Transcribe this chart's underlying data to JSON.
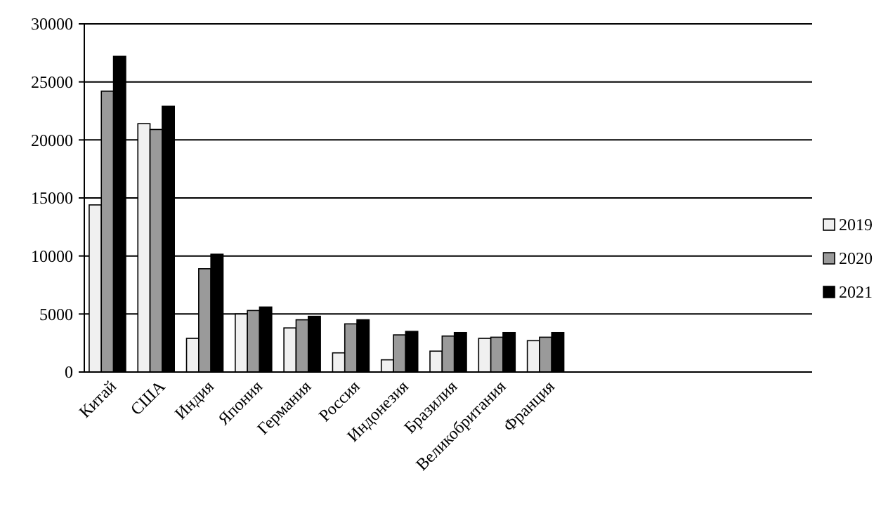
{
  "chart_data": {
    "type": "bar",
    "categories": [
      "Китай",
      "США",
      "Индия",
      "Япония",
      "Германия",
      "Россия",
      "Индонезия",
      "Бразилия",
      "Великобритания",
      "Франция",
      null,
      null,
      null,
      null,
      null
    ],
    "series": [
      {
        "name": "2019",
        "color": "#f0f0f0",
        "values": [
          14400,
          21400,
          2900,
          5000,
          3800,
          1650,
          1050,
          1800,
          2900,
          2700,
          null,
          null,
          null,
          null,
          null
        ]
      },
      {
        "name": "2020",
        "color": "#9a9a9a",
        "values": [
          24200,
          20900,
          8900,
          5300,
          4500,
          4150,
          3200,
          3100,
          3000,
          3000,
          null,
          null,
          null,
          null,
          null
        ]
      },
      {
        "name": "2021",
        "color": "#000000",
        "values": [
          27200,
          22900,
          10150,
          5600,
          4800,
          4500,
          3500,
          3400,
          3400,
          3400,
          null,
          null,
          null,
          null,
          null
        ]
      }
    ],
    "ylim": [
      0,
      30000
    ],
    "yticks": [
      0,
      5000,
      10000,
      15000,
      20000,
      25000,
      30000
    ],
    "grid": "y",
    "legend": "right"
  }
}
